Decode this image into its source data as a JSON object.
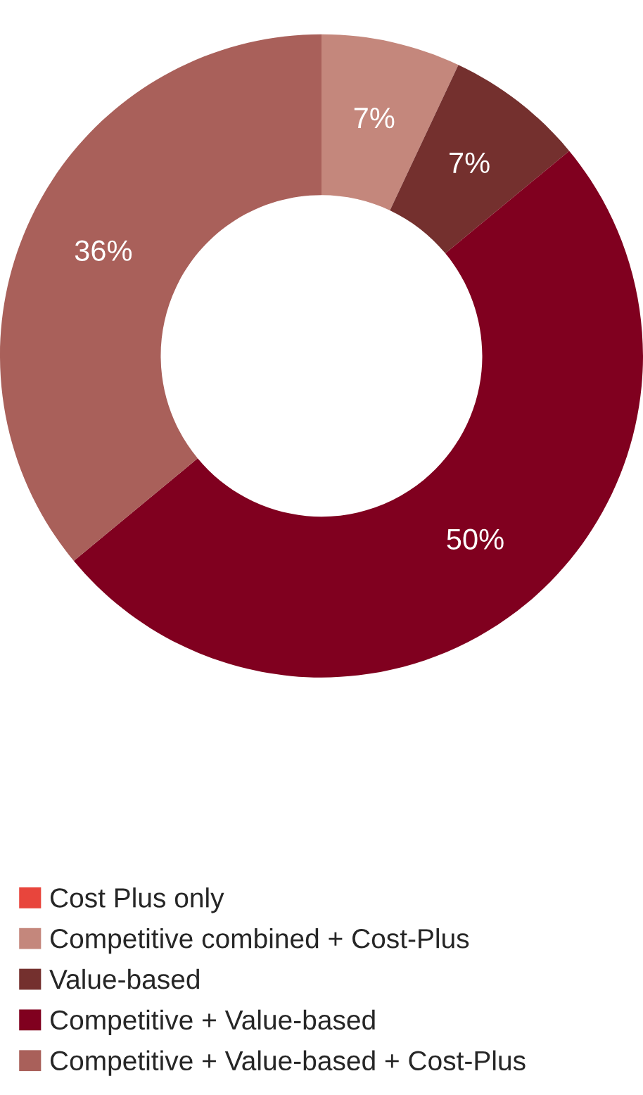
{
  "chart_data": {
    "type": "donut",
    "categories": [
      "Cost Plus only",
      "Competitive combined + Cost-Plus",
      "Value-based",
      "Competitive + Value-based",
      "Competitive + Value-based + Cost-Plus"
    ],
    "values": [
      0,
      7,
      7,
      50,
      36
    ],
    "value_labels": [
      null,
      "7%",
      "7%",
      "50%",
      "36%"
    ],
    "colors": [
      "#e8453c",
      "#c4877c",
      "#74302e",
      "#80001f",
      "#a9605a"
    ],
    "legend": "bottom"
  }
}
